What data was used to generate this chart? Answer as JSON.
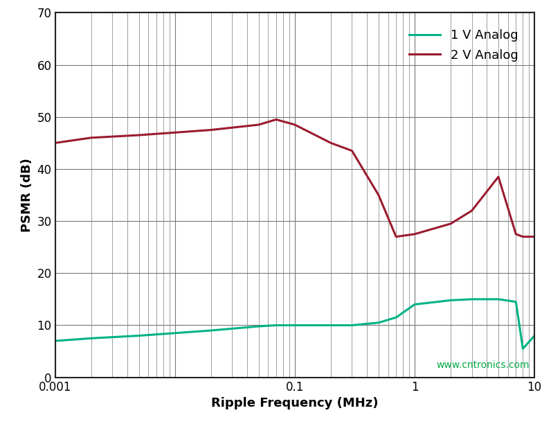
{
  "title": "",
  "xlabel": "Ripple Frequency (MHz)",
  "ylabel": "PSMR (dB)",
  "ylim": [
    0,
    70
  ],
  "yticks": [
    0,
    10,
    20,
    30,
    40,
    50,
    60,
    70
  ],
  "background_color": "#ffffff",
  "grid_color": "#777777",
  "watermark": "www.cntronics.com",
  "watermark_color": "#00aa44",
  "series": [
    {
      "label": "1 V Analog",
      "color": "#00b386",
      "linewidth": 2.2,
      "x": [
        0.001,
        0.002,
        0.005,
        0.01,
        0.02,
        0.05,
        0.07,
        0.1,
        0.2,
        0.3,
        0.5,
        0.7,
        1.0,
        2.0,
        3.0,
        5.0,
        7.0,
        8.0,
        10.0
      ],
      "y": [
        7.0,
        7.5,
        8.0,
        8.5,
        9.0,
        9.8,
        10.0,
        10.0,
        10.0,
        10.0,
        10.5,
        11.5,
        14.0,
        14.8,
        15.0,
        15.0,
        14.5,
        5.5,
        8.0
      ]
    },
    {
      "label": "2 V Analog",
      "color": "#9b1b30",
      "linewidth": 2.2,
      "x": [
        0.001,
        0.002,
        0.005,
        0.01,
        0.02,
        0.05,
        0.07,
        0.1,
        0.2,
        0.3,
        0.5,
        0.7,
        1.0,
        2.0,
        3.0,
        5.0,
        7.0,
        8.0,
        10.0
      ],
      "y": [
        45.0,
        46.0,
        46.5,
        47.0,
        47.5,
        48.5,
        49.5,
        48.5,
        45.0,
        43.5,
        35.0,
        27.0,
        27.5,
        29.5,
        32.0,
        38.5,
        27.5,
        27.0,
        27.0
      ]
    }
  ],
  "legend": {
    "loc": "upper right",
    "fontsize": 13,
    "frameon": true
  },
  "font_sizes": {
    "axis_label": 13,
    "tick_label": 12,
    "watermark": 10
  }
}
